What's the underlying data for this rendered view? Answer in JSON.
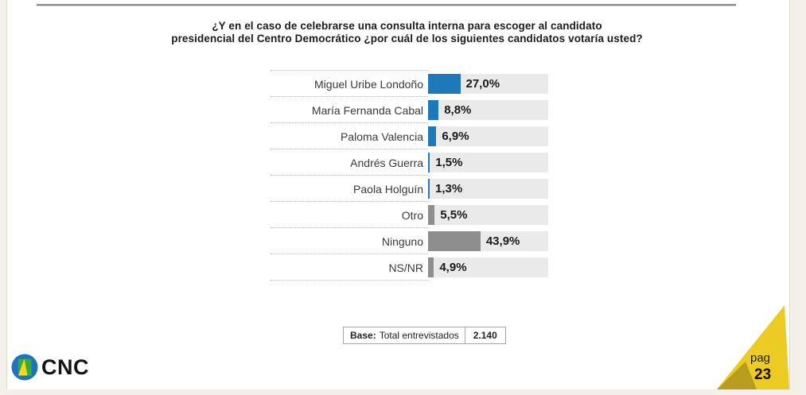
{
  "page": {
    "background": "#f2f0e9",
    "slide_background": "#ffffff"
  },
  "title": {
    "line1": "¿Y en el caso de celebrarse una consulta interna para escoger al candidato",
    "line2": "presidencial del Centro Democrático ¿por cuál de los siguientes candidatos votaría usted?"
  },
  "chart_data": {
    "type": "bar",
    "orientation": "horizontal",
    "title": "¿Y en el caso de celebrarse una consulta interna para escoger al candidato presidencial del Centro Democrático ¿por cuál de los siguientes candidatos votaría usted?",
    "categories": [
      "Miguel Uribe Londoño",
      "María Fernanda Cabal",
      "Paloma Valencia",
      "Andrés Guerra",
      "Paola Holguín",
      "Otro",
      "Ninguno",
      "NS/NR"
    ],
    "values": [
      27.0,
      8.8,
      6.9,
      1.5,
      1.3,
      5.5,
      43.9,
      4.9
    ],
    "value_labels": [
      "27,0%",
      "8,8%",
      "6,9%",
      "1,5%",
      "1,3%",
      "5,5%",
      "43,9%",
      "4,9%"
    ],
    "bar_color_keys": [
      "bar_blue",
      "bar_blue",
      "bar_blue",
      "bar_blue",
      "bar_blue",
      "bar_gray",
      "bar_gray",
      "bar_gray"
    ],
    "xlim": [
      0,
      100
    ],
    "grid": "dotted-row-separators",
    "legend": "none"
  },
  "base_note": {
    "label": "Base:",
    "text": "Total entrevistados",
    "value": "2.140"
  },
  "footer": {
    "logo_text": "CNC",
    "page_label": "pag",
    "page_number": "23"
  },
  "colors": {
    "bar_blue": "#1f78b8",
    "bar_gray": "#8e8e8e",
    "bar_track": "#eaeaea",
    "accent_yellow": "#eccb25",
    "accent_gold": "#b89c1e",
    "logo_blue": "#1c75bc",
    "logo_green": "#3aa93f",
    "logo_yellow": "#f7d919",
    "rule_gray": "#8a8a8a"
  }
}
